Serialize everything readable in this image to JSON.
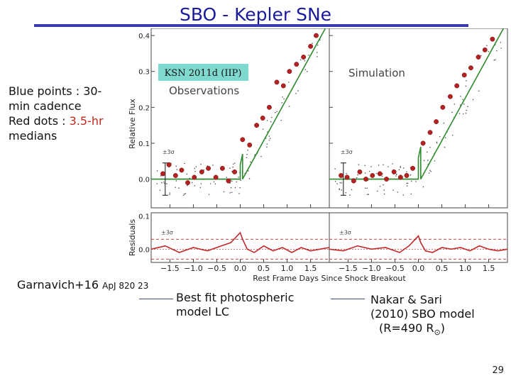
{
  "slide": {
    "title": "SBO - Kepler SNe",
    "page_number": "29",
    "notes": {
      "blue_label": "Blue points : 30-min cadence",
      "red_prefix": "Red dots : ",
      "red_value": "3.5-hr",
      "red_suffix": "medians"
    },
    "credit": {
      "main": "Garnavich+16 ",
      "ref": "ApJ 820 23"
    },
    "legend": {
      "photospheric": "Best fit photospheric model LC",
      "sbo_line1": "Nakar & Sari",
      "sbo_line2": "(2010) SBO model",
      "sbo_line3_pre": "(R=490 R",
      "sbo_line3_sym": "⊙",
      "sbo_line3_post": ")"
    }
  },
  "colors": {
    "title": "#1a1a9c",
    "median_dots": "#b22222",
    "model_line": "#2e8b2e",
    "residual_line": "#c0282a",
    "label_box": "#7fd9cf"
  },
  "chart_data": {
    "type": "scatter",
    "label_box": "KSN 2011d (IIP)",
    "xlabel": "Rest Frame Days Since Shock Breakout",
    "ylabel": "Relative Flux",
    "residual_ylabel": "Residuals",
    "sigma_label": "±3σ",
    "xlim": [
      -1.9,
      1.9
    ],
    "ylim": [
      -0.08,
      0.42
    ],
    "residual_ylim": [
      -0.04,
      0.11
    ],
    "x_ticks": [
      -1.5,
      -1.0,
      -0.5,
      0.0,
      0.5,
      1.0,
      1.5
    ],
    "x_tick_labels": [
      "−1.5",
      "−1.0",
      "−0.5",
      "0.0",
      "0.5",
      "1.0",
      "1.5"
    ],
    "y_ticks": [
      0.0,
      0.1,
      0.2,
      0.3,
      0.4
    ],
    "y_tick_labels": [
      "0.0",
      "0.1",
      "0.2",
      "0.3",
      "0.4"
    ],
    "residual_ticks": [
      0.0,
      0.1
    ],
    "residual_tick_labels": [
      "0.0",
      "0.1"
    ],
    "panels": [
      {
        "title": "Observations",
        "median_points": {
          "x": [
            -1.65,
            -1.52,
            -1.38,
            -1.25,
            -1.12,
            -0.98,
            -0.82,
            -0.68,
            -0.52,
            -0.38,
            -0.25,
            -0.12,
            0.05,
            0.2,
            0.35,
            0.48,
            0.62,
            0.78,
            0.92,
            1.05,
            1.2,
            1.35,
            1.5,
            1.62
          ],
          "y": [
            0.015,
            0.04,
            0.01,
            0.025,
            -0.01,
            0.005,
            0.02,
            0.03,
            0.005,
            0.03,
            -0.005,
            0.02,
            0.11,
            0.095,
            0.15,
            0.17,
            0.2,
            0.27,
            0.26,
            0.3,
            0.32,
            0.34,
            0.37,
            0.4
          ]
        },
        "model_line": {
          "x": [
            -1.9,
            0.0,
            0.0,
            0.05,
            0.05,
            1.9
          ],
          "y": [
            0.0,
            0.0,
            0.04,
            0.07,
            0.0,
            0.44
          ]
        },
        "residuals": {
          "x": [
            -1.9,
            -1.6,
            -1.3,
            -1.0,
            -0.7,
            -0.4,
            -0.2,
            0.0,
            0.05,
            0.15,
            0.3,
            0.5,
            0.7,
            0.9,
            1.1,
            1.3,
            1.5,
            1.7,
            1.9
          ],
          "y": [
            0.0,
            0.01,
            -0.01,
            0.005,
            -0.005,
            0.01,
            0.02,
            0.05,
            0.03,
            0.0,
            -0.01,
            0.01,
            -0.005,
            0.005,
            -0.01,
            0.005,
            -0.005,
            0.0,
            0.005
          ]
        }
      },
      {
        "title": "Simulation",
        "median_points": {
          "x": [
            -1.65,
            -1.52,
            -1.38,
            -1.25,
            -1.12,
            -0.98,
            -0.82,
            -0.68,
            -0.52,
            -0.38,
            -0.25,
            -0.12,
            0.1,
            0.25,
            0.38,
            0.52,
            0.68,
            0.82,
            0.98,
            1.12,
            1.28,
            1.42,
            1.58
          ],
          "y": [
            0.01,
            0.005,
            -0.005,
            0.02,
            0.0,
            0.01,
            0.015,
            0.0,
            0.02,
            0.005,
            0.01,
            0.03,
            0.1,
            0.13,
            0.16,
            0.2,
            0.23,
            0.26,
            0.29,
            0.31,
            0.34,
            0.36,
            0.39
          ]
        },
        "model_line": {
          "x": [
            -1.9,
            0.0,
            0.0,
            0.05,
            0.05,
            1.9
          ],
          "y": [
            0.0,
            0.0,
            0.06,
            0.09,
            0.0,
            0.44
          ]
        },
        "residuals": {
          "x": [
            -1.9,
            -1.6,
            -1.3,
            -1.0,
            -0.7,
            -0.4,
            -0.2,
            0.0,
            0.05,
            0.15,
            0.3,
            0.5,
            0.7,
            0.9,
            1.1,
            1.3,
            1.5,
            1.7,
            1.9
          ],
          "y": [
            0.0,
            -0.005,
            0.01,
            0.0,
            0.005,
            -0.01,
            0.01,
            0.04,
            0.02,
            -0.005,
            -0.01,
            0.005,
            0.0,
            0.005,
            -0.005,
            0.01,
            0.0,
            -0.005,
            0.0
          ]
        }
      }
    ]
  }
}
